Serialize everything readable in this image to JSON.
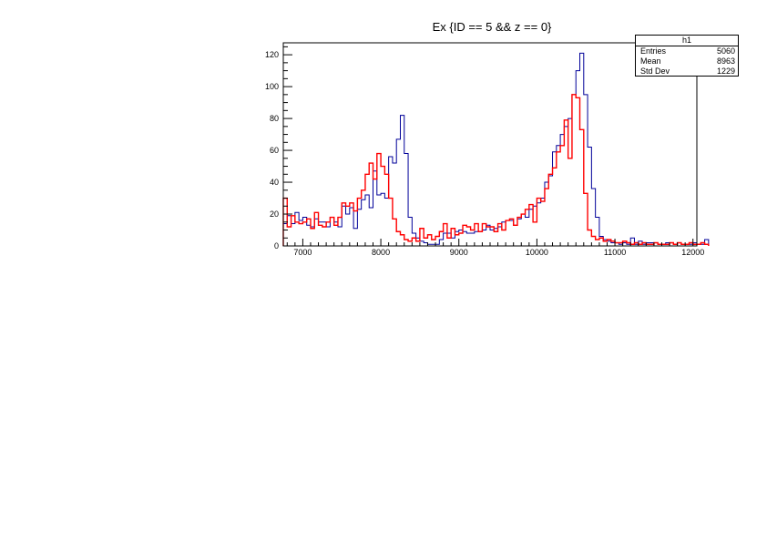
{
  "chart_data": {
    "type": "bar",
    "histogram": true,
    "title": "Ex {ID == 5 && z == 0}",
    "xlabel": "",
    "ylabel": "",
    "xlim": [
      6750,
      12050
    ],
    "ylim": [
      0,
      127.5
    ],
    "x_ticks": [
      7000,
      8000,
      9000,
      10000,
      11000,
      12000
    ],
    "y_ticks": [
      0,
      20,
      40,
      60,
      80,
      100,
      120
    ],
    "bin_width": 50,
    "x_start": 6750,
    "grid": false,
    "series": [
      {
        "color": "#000099",
        "values": [
          14,
          19,
          14,
          21,
          16,
          18,
          13,
          12,
          17,
          15,
          15,
          12,
          18,
          15,
          12,
          25,
          20,
          24,
          11,
          23,
          29,
          32,
          24,
          47,
          32,
          33,
          30,
          56,
          52,
          67,
          82,
          58,
          18,
          8,
          5,
          3,
          2,
          1,
          1,
          1,
          4,
          8,
          8,
          5,
          9,
          10,
          9,
          8,
          8,
          9,
          9,
          10,
          13,
          10,
          11,
          12,
          15,
          16,
          16,
          13,
          17,
          20,
          18,
          23,
          25,
          27,
          30,
          40,
          44,
          59,
          63,
          70,
          75,
          80,
          95,
          110,
          121,
          95,
          62,
          36,
          18,
          6,
          4,
          3,
          2,
          2,
          1,
          2,
          1,
          5,
          1,
          3,
          1,
          2,
          2,
          2,
          1,
          1,
          2,
          2,
          1,
          2,
          1,
          1,
          1,
          2,
          1,
          1,
          4
        ]
      },
      {
        "color": "#ff0000",
        "values": [
          30,
          12,
          19,
          15,
          14,
          15,
          17,
          11,
          21,
          13,
          12,
          15,
          18,
          13,
          18,
          27,
          25,
          27,
          22,
          30,
          35,
          45,
          52,
          42,
          58,
          50,
          45,
          30,
          17,
          9,
          7,
          4,
          3,
          5,
          3,
          11,
          5,
          7,
          4,
          6,
          9,
          14,
          5,
          11,
          7,
          8,
          13,
          12,
          10,
          14,
          9,
          14,
          12,
          12,
          9,
          14,
          10,
          16,
          17,
          13,
          18,
          20,
          23,
          26,
          15,
          30,
          28,
          36,
          45,
          49,
          59,
          63,
          79,
          55,
          95,
          93,
          73,
          33,
          10,
          6,
          4,
          5,
          3,
          4,
          3,
          2,
          2,
          3,
          2,
          1,
          2,
          1,
          2,
          1,
          1,
          2,
          1,
          1,
          1,
          2,
          1,
          2,
          1,
          1,
          2,
          1,
          1,
          2,
          1
        ]
      }
    ],
    "stats": {
      "name": "h1",
      "entries_label": "Entries",
      "entries": "5060",
      "mean_label": "Mean",
      "mean": "8963",
      "stddev_label": "Std Dev",
      "stddev": "1229"
    }
  }
}
